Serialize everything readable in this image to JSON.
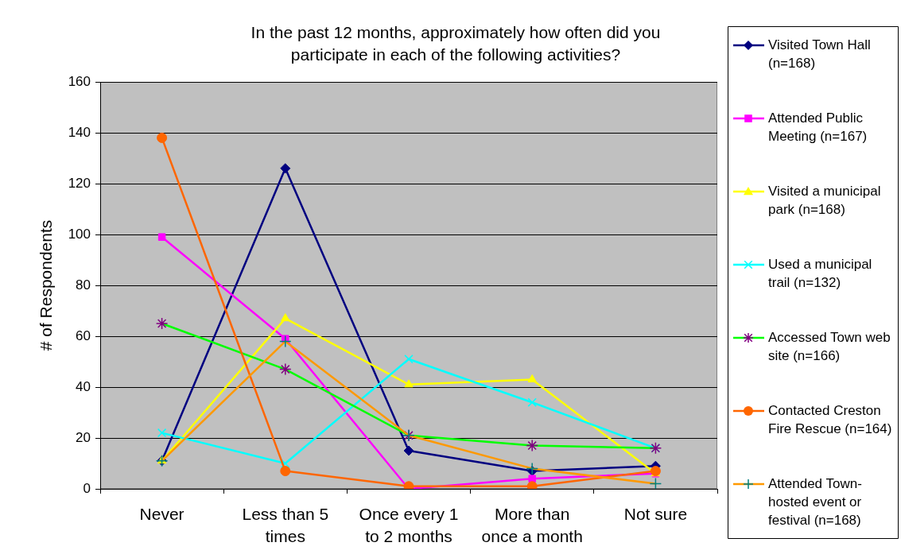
{
  "chart_data": {
    "type": "line",
    "title": "In the past 12 months, approximately how often did you participate in each of the following activities?",
    "ylabel": "# of Respondents",
    "categories": [
      "Never",
      "Less than 5 times",
      "Once every 1 to 2 months",
      "More than once a month",
      "Not sure"
    ],
    "ylim": [
      0,
      160
    ],
    "yticks": [
      0,
      20,
      40,
      60,
      80,
      100,
      120,
      140,
      160
    ],
    "grid": "y",
    "legend": "right",
    "line_style": "solid",
    "series": [
      {
        "name": "Visited Town Hall (n=168)",
        "color": "#000080",
        "marker": "diamond",
        "values": [
          11,
          126,
          15,
          7,
          9
        ]
      },
      {
        "name": "Attended Public Meeting (n=167)",
        "color": "#ff00ff",
        "marker": "square",
        "values": [
          99,
          59,
          0,
          4,
          6
        ]
      },
      {
        "name": "Visited a municipal park (n=168)",
        "color": "#ffff00",
        "marker": "triangle",
        "values": [
          11,
          67,
          41,
          43,
          6
        ]
      },
      {
        "name": "Used a municipal trail (n=132)",
        "color": "#00ffff",
        "marker": "x",
        "values": [
          22,
          10,
          51,
          34,
          16
        ]
      },
      {
        "name": "Accessed Town web site (n=166)",
        "color": "#00ff00",
        "colors": [
          "#800080",
          "#800080",
          "#800080",
          "#800080",
          "#800080"
        ],
        "marker": "cross",
        "values": [
          65,
          47,
          21,
          17,
          16
        ]
      },
      {
        "name": "Contacted Creston Fire Rescue (n=164)",
        "color": "#ff6600",
        "marker": "circle",
        "values": [
          138,
          7,
          1,
          1,
          7
        ]
      },
      {
        "name": "Attended Town-hosted event or festival (n=168)",
        "color": "#ff9900",
        "colors": [
          "#008080",
          "#008080",
          "#008080",
          "#008080",
          "#008080"
        ],
        "marker": "plus",
        "values": [
          11,
          58,
          21,
          8,
          2
        ]
      }
    ]
  }
}
